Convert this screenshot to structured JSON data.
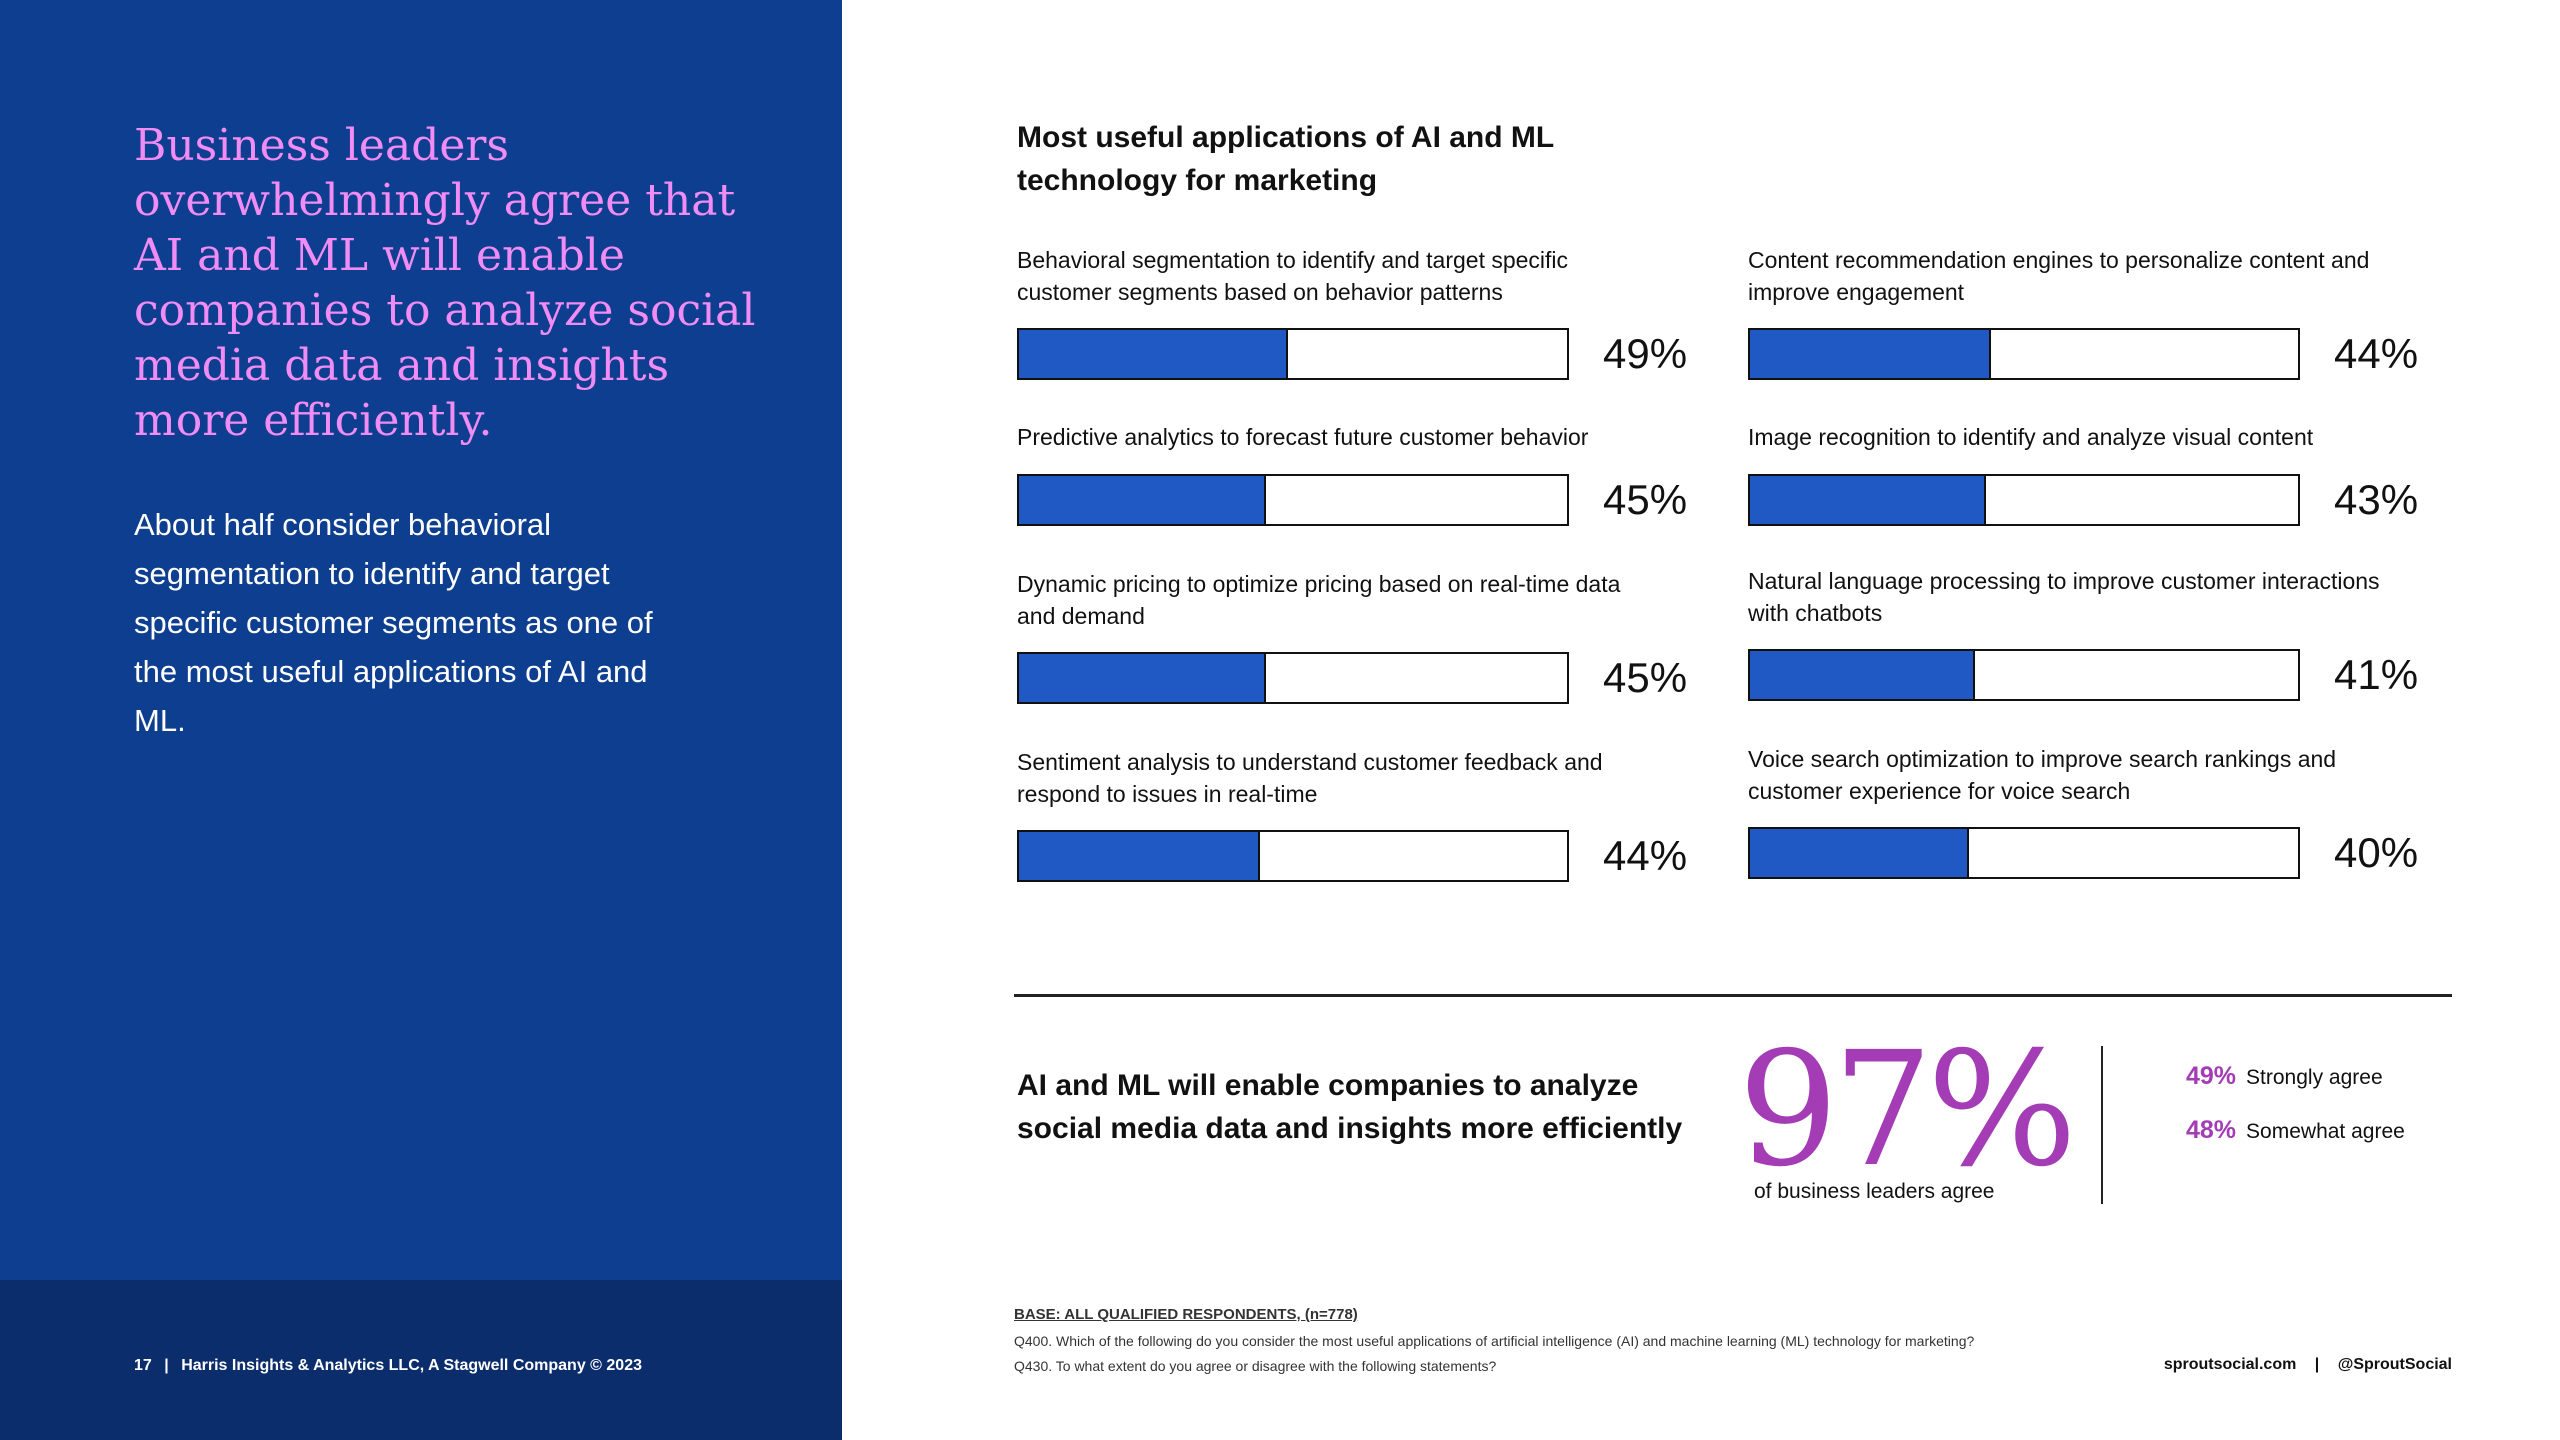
{
  "left": {
    "headline": "Business leaders overwhelmingly agree that AI and ML will enable companies to analyze social media data and insights more efficiently.",
    "intro": "About half consider behavioral segmentation to identify and target specific customer segments as one of the most useful applications of AI and ML.",
    "footer": {
      "page_number": "17",
      "separator": "|",
      "credit": "Harris Insights & Analytics LLC, A Stagwell Company © 2023"
    }
  },
  "chart_data": {
    "type": "bar",
    "title": "Most useful applications of AI and ML technology for marketing",
    "categories": [
      "Behavioral segmentation to identify and target specific customer segments based on behavior patterns",
      "Predictive analytics to forecast future customer behavior",
      "Dynamic pricing to optimize pricing based on real-time data and demand",
      "Sentiment analysis to understand customer feedback and respond to issues in real-time",
      "Content recommendation engines to personalize content and improve engagement",
      "Image recognition to identify and analyze visual content",
      "Natural language processing to improve customer interactions with chatbots",
      "Voice search optimization to improve search rankings and customer experience for voice search"
    ],
    "values": [
      49,
      45,
      45,
      44,
      44,
      43,
      41,
      40
    ],
    "value_labels": [
      "49%",
      "45%",
      "45%",
      "44%",
      "44%",
      "43%",
      "41%",
      "40%"
    ],
    "ylim": [
      0,
      100
    ],
    "fill_color": "#2159c4"
  },
  "stat": {
    "statement": "AI and ML will enable companies to analyze social media data and insights more efficiently",
    "big_value": "97%",
    "caption": "of business leaders agree",
    "breakdown": [
      {
        "pct": "49%",
        "label": "Strongly agree"
      },
      {
        "pct": "48%",
        "label": "Somewhat agree"
      }
    ],
    "accent_color": "#a43db5"
  },
  "notes": {
    "base": "BASE: ALL QUALIFIED RESPONDENTS, (n=778)",
    "q400": "Q400. Which of the following do you consider the most useful applications of artificial intelligence (AI) and machine learning (ML) technology for marketing?",
    "q430": "Q430. To what extent do you agree or disagree with the following statements?"
  },
  "site_footer": {
    "site": "sproutsocial.com",
    "separator": "|",
    "handle": "@SproutSocial"
  }
}
